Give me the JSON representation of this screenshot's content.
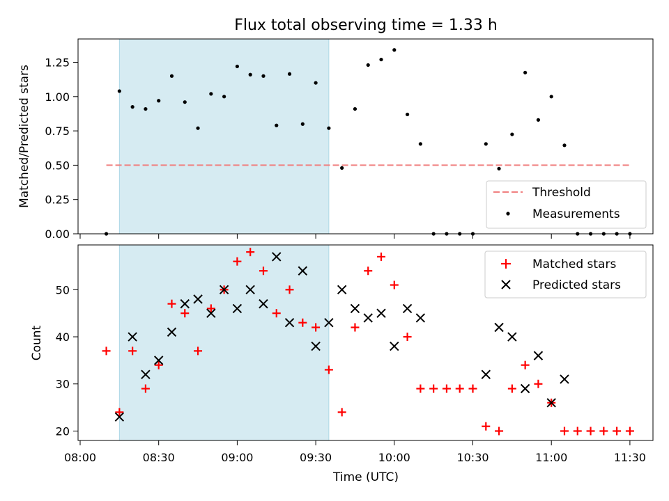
{
  "chart_data": [
    {
      "type": "scatter",
      "title": "Flux total observing time = 1.33 h",
      "ylabel": "Matched/Predicted stars",
      "xlabel": "",
      "xlim": [
        "08:00",
        "11:33"
      ],
      "ylim": [
        0,
        1.42
      ],
      "yticks": [
        "0.00",
        "0.25",
        "0.50",
        "0.75",
        "1.00",
        "1.25"
      ],
      "observing_window": {
        "start": "08:15",
        "end": "09:35",
        "color": "#add8e6"
      },
      "threshold": {
        "name": "Threshold",
        "value": 0.5,
        "x_start": "08:10",
        "x_end": "11:30",
        "color": "#f08080"
      },
      "legend": {
        "position": "lower right",
        "entries": [
          "Threshold",
          "Measurements"
        ]
      },
      "series": [
        {
          "name": "Measurements",
          "color": "#000000",
          "marker": "dot",
          "x": [
            "08:10",
            "08:15",
            "08:20",
            "08:25",
            "08:30",
            "08:35",
            "08:40",
            "08:45",
            "08:50",
            "08:55",
            "09:00",
            "09:05",
            "09:10",
            "09:15",
            "09:20",
            "09:25",
            "09:30",
            "09:35",
            "09:40",
            "09:45",
            "09:50",
            "09:55",
            "10:00",
            "10:05",
            "10:10",
            "10:15",
            "10:20",
            "10:25",
            "10:30",
            "10:35",
            "10:40",
            "10:45",
            "10:50",
            "10:55",
            "11:00",
            "11:05",
            "11:10",
            "11:15",
            "11:20",
            "11:25",
            "11:30"
          ],
          "y": [
            0,
            1.04,
            0.925,
            0.91,
            0.97,
            1.15,
            0.96,
            0.77,
            1.02,
            1.0,
            1.22,
            1.16,
            1.15,
            0.79,
            1.165,
            0.8,
            1.1,
            0.77,
            0.48,
            0.91,
            1.23,
            1.27,
            1.34,
            0.87,
            0.655,
            0,
            0,
            0,
            0,
            0.655,
            0.475,
            0.725,
            1.175,
            0.83,
            1.0,
            0.645,
            0,
            0,
            0,
            0,
            0
          ]
        }
      ]
    },
    {
      "type": "scatter",
      "title": "",
      "ylabel": "Count",
      "xlabel": "Time (UTC)",
      "xlim": [
        "08:00",
        "11:33"
      ],
      "ylim": [
        18,
        59.5
      ],
      "yticks": [
        "20",
        "30",
        "40",
        "50"
      ],
      "xticks": [
        "08:00",
        "08:30",
        "09:00",
        "09:30",
        "10:00",
        "10:30",
        "11:00",
        "11:30"
      ],
      "observing_window": {
        "start": "08:15",
        "end": "09:35",
        "color": "#add8e6"
      },
      "legend": {
        "position": "upper right",
        "entries": [
          "Matched stars",
          "Predicted stars"
        ]
      },
      "series": [
        {
          "name": "Matched stars",
          "color": "#ff0000",
          "marker": "plus",
          "x": [
            "08:10",
            "08:15",
            "08:20",
            "08:25",
            "08:30",
            "08:35",
            "08:40",
            "08:45",
            "08:50",
            "08:55",
            "09:00",
            "09:05",
            "09:10",
            "09:15",
            "09:20",
            "09:25",
            "09:30",
            "09:35",
            "09:40",
            "09:45",
            "09:50",
            "09:55",
            "10:00",
            "10:05",
            "10:10",
            "10:15",
            "10:20",
            "10:25",
            "10:30",
            "10:35",
            "10:40",
            "10:45",
            "10:50",
            "10:55",
            "11:00",
            "11:05",
            "11:10",
            "11:15",
            "11:20",
            "11:25",
            "11:30"
          ],
          "y": [
            37,
            24,
            37,
            29,
            34,
            47,
            45,
            37,
            46,
            50,
            56,
            58,
            54,
            45,
            50,
            43,
            42,
            33,
            24,
            42,
            54,
            57,
            51,
            40,
            29,
            29,
            29,
            29,
            29,
            21,
            20,
            29,
            34,
            30,
            26,
            20,
            20,
            20,
            20,
            20,
            20
          ]
        },
        {
          "name": "Predicted stars",
          "color": "#000000",
          "marker": "x",
          "x": [
            "08:15",
            "08:20",
            "08:25",
            "08:30",
            "08:35",
            "08:40",
            "08:45",
            "08:50",
            "08:55",
            "09:00",
            "09:05",
            "09:10",
            "09:15",
            "09:20",
            "09:25",
            "09:30",
            "09:35",
            "09:40",
            "09:45",
            "09:50",
            "09:55",
            "10:00",
            "10:05",
            "10:10",
            "10:35",
            "10:40",
            "10:45",
            "10:50",
            "10:55",
            "11:00",
            "11:05"
          ],
          "y": [
            23,
            40,
            32,
            35,
            41,
            47,
            48,
            45,
            50,
            46,
            50,
            47,
            57,
            43,
            54,
            38,
            43,
            50,
            46,
            44,
            45,
            38,
            46,
            44,
            32,
            42,
            40,
            29,
            36,
            26,
            31
          ]
        }
      ]
    }
  ]
}
